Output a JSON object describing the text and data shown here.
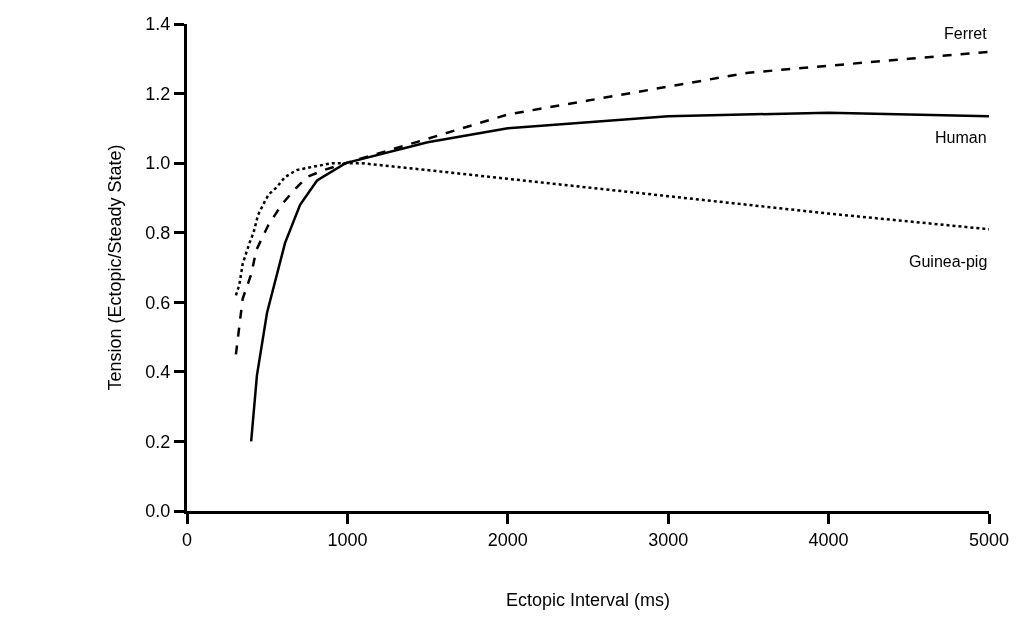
{
  "chart_data": {
    "type": "line",
    "xlabel": "Ectopic Interval (ms)",
    "ylabel": "Tension (Ectopic/Steady State)",
    "xlim": [
      0,
      5000
    ],
    "xticks": [
      0,
      1000,
      2000,
      3000,
      4000,
      5000
    ],
    "ylim": [
      0,
      1.4
    ],
    "yticks": [
      {
        "value": 0,
        "label": "0.0"
      },
      0.2,
      0.4,
      0.6,
      0.8,
      {
        "value": 1,
        "label": "1.0"
      },
      1.2,
      1.4
    ],
    "grid": false,
    "legend": false,
    "marker": "none",
    "series": [
      {
        "name": "Ferret",
        "color": "#000000",
        "line_style": "dashed",
        "x": [
          305,
          326,
          347,
          400,
          432,
          505,
          589,
          663,
          747,
          853,
          989,
          1500,
          2000,
          2500,
          3000,
          3500,
          4000,
          4500,
          5000
        ],
        "values": [
          0.45,
          0.53,
          0.61,
          0.68,
          0.75,
          0.82,
          0.88,
          0.92,
          0.96,
          0.98,
          1.0,
          1.07,
          1.14,
          1.18,
          1.22,
          1.26,
          1.28,
          1.3,
          1.32
        ]
      },
      {
        "name": "Human",
        "color": "#000000",
        "line_style": "solid",
        "x": [
          400,
          436,
          499,
          611,
          705,
          811,
          989,
          1500,
          2000,
          3000,
          4000,
          5000
        ],
        "values": [
          0.2,
          0.39,
          0.57,
          0.77,
          0.88,
          0.95,
          1.0,
          1.06,
          1.1,
          1.135,
          1.145,
          1.135
        ]
      },
      {
        "name": "Guinea-pig",
        "color": "#000000",
        "line_style": "dotted",
        "x": [
          305,
          326,
          347,
          368,
          389,
          415,
          442,
          474,
          509,
          558,
          611,
          684,
          789,
          905,
          1084,
          1500,
          2000,
          3000,
          4000,
          5000
        ],
        "values": [
          0.62,
          0.65,
          0.71,
          0.74,
          0.77,
          0.8,
          0.85,
          0.88,
          0.91,
          0.93,
          0.96,
          0.98,
          0.99,
          1.0,
          1.0,
          0.98,
          0.955,
          0.905,
          0.855,
          0.81
        ]
      }
    ]
  }
}
